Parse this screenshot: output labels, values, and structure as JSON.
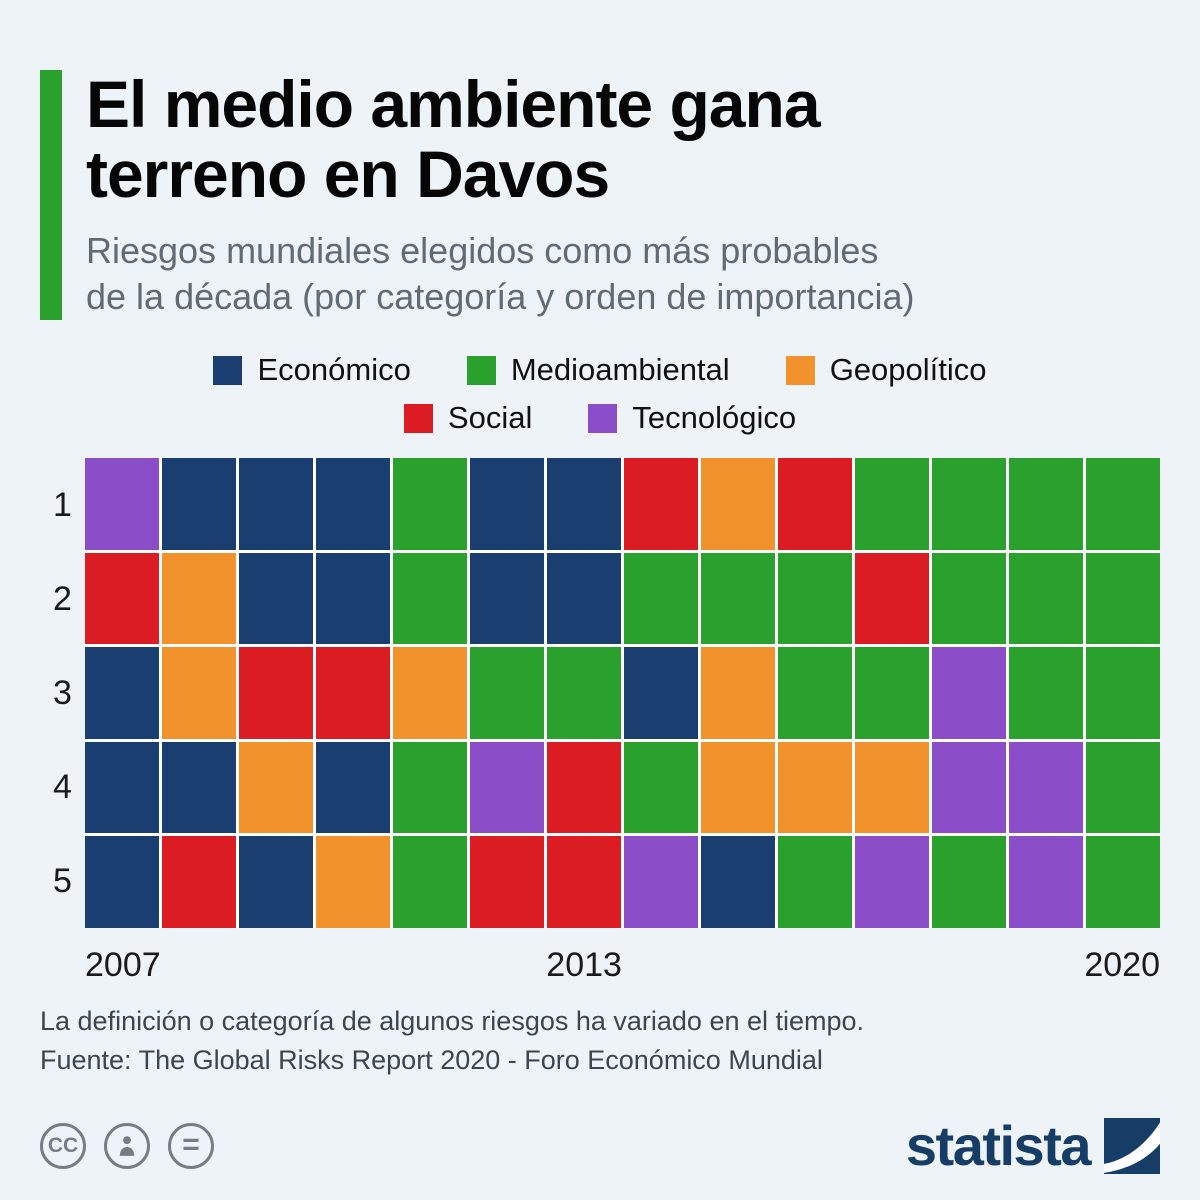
{
  "header": {
    "title_lines": [
      "El medio ambiente gana",
      "terreno en Davos"
    ],
    "subtitle_lines": [
      "Riesgos mundiales elegidos como más probables",
      "de la década (por categoría y orden de importancia)"
    ],
    "accent_color": "#2aa12d"
  },
  "chart_data": {
    "type": "heatmap",
    "title": "El medio ambiente gana terreno en Davos",
    "subtitle": "Riesgos mundiales elegidos como más probables de la década (por categoría y orden de importancia)",
    "legend_position": "top",
    "years": [
      2007,
      2008,
      2009,
      2010,
      2011,
      2012,
      2013,
      2014,
      2015,
      2016,
      2017,
      2018,
      2019,
      2020
    ],
    "ranks": [
      1,
      2,
      3,
      4,
      5
    ],
    "x_ticks": [
      "2007",
      "2013",
      "2020"
    ],
    "categories": [
      {
        "code": "E",
        "id": "economico",
        "label": "Económico",
        "color": "#1b3e70"
      },
      {
        "code": "M",
        "id": "medioambiental",
        "label": "Medioambiental",
        "color": "#2aa12d"
      },
      {
        "code": "G",
        "id": "geopolitico",
        "label": "Geopolítico",
        "color": "#f2922d"
      },
      {
        "code": "S",
        "id": "social",
        "label": "Social",
        "color": "#dc1c23"
      },
      {
        "code": "T",
        "id": "tecnologico",
        "label": "Tecnológico",
        "color": "#8b4dc8"
      }
    ],
    "legend_rows": [
      [
        "economico",
        "medioambiental",
        "geopolitico"
      ],
      [
        "social",
        "tecnologico"
      ]
    ],
    "grid": [
      [
        "T",
        "E",
        "E",
        "E",
        "M",
        "E",
        "E",
        "S",
        "G",
        "S",
        "M",
        "M",
        "M",
        "M"
      ],
      [
        "S",
        "G",
        "E",
        "E",
        "M",
        "E",
        "E",
        "M",
        "M",
        "M",
        "S",
        "M",
        "M",
        "M"
      ],
      [
        "E",
        "G",
        "S",
        "S",
        "G",
        "M",
        "M",
        "E",
        "G",
        "M",
        "M",
        "T",
        "M",
        "M"
      ],
      [
        "E",
        "E",
        "G",
        "E",
        "M",
        "T",
        "S",
        "M",
        "G",
        "G",
        "G",
        "T",
        "T",
        "M"
      ],
      [
        "E",
        "S",
        "E",
        "G",
        "M",
        "S",
        "S",
        "T",
        "E",
        "M",
        "T",
        "M",
        "T",
        "M"
      ]
    ]
  },
  "footnotes": {
    "line1": "La definición o categoría de algunos riesgos ha variado en el tiempo.",
    "line2": "Fuente: The Global Risks Report 2020 - Foro Económico Mundial"
  },
  "footer": {
    "cc_label": "CC",
    "nd_label": "=",
    "brand": "statista",
    "brand_color": "#163d66"
  }
}
